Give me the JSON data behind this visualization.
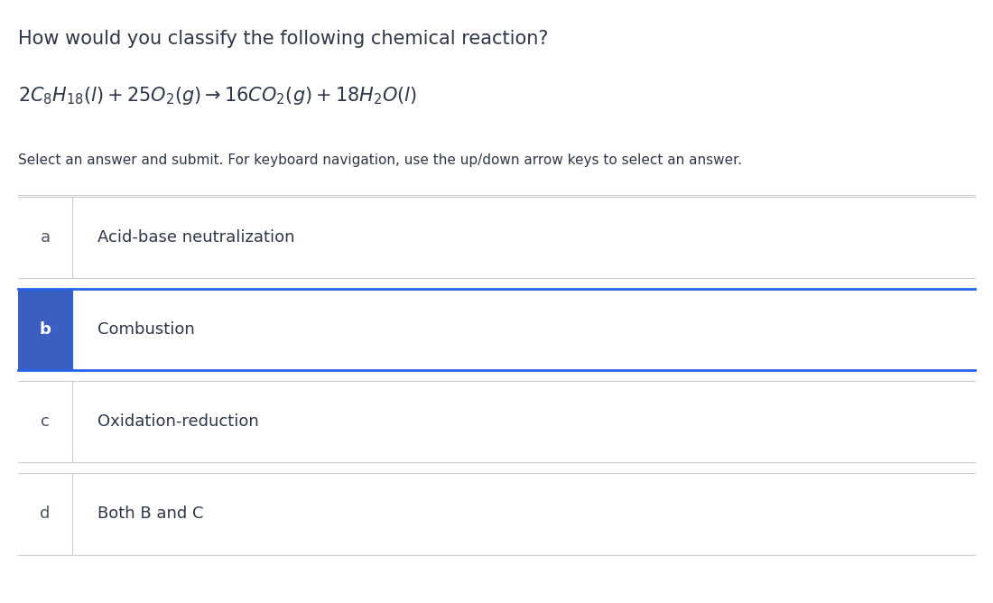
{
  "title_line1": "How would you classify the following chemical reaction?",
  "subtitle": "Select an answer and submit. For keyboard navigation, use the up/down arrow keys to select an answer.",
  "options": [
    {
      "label": "a",
      "text": "Acid-base neutralization",
      "selected": false
    },
    {
      "label": "b",
      "text": "Combustion",
      "selected": true
    },
    {
      "label": "c",
      "text": "Oxidation-reduction",
      "selected": false
    },
    {
      "label": "d",
      "text": "Both B and C",
      "selected": false
    }
  ],
  "bg_color": "#ffffff",
  "text_color": "#2d3748",
  "label_color_normal": "#4a5568",
  "label_color_selected": "#ffffff",
  "selected_bg": "#3b5fc0",
  "selected_border": "#2563eb",
  "divider_color": "#cccccc",
  "title_fontsize": 15,
  "equation_fontsize": 15,
  "subtitle_fontsize": 11,
  "option_label_fontsize": 13,
  "option_text_fontsize": 13
}
